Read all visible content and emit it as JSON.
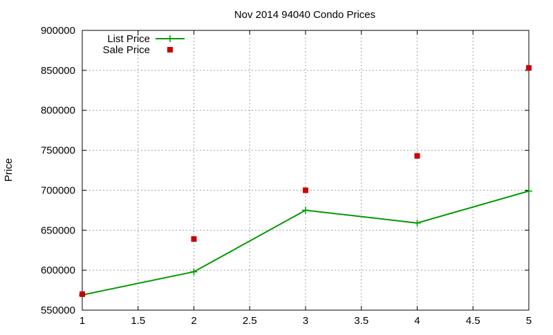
{
  "chart_data": {
    "type": "line",
    "title": "Nov 2014 94040 Condo Prices",
    "xlabel": "",
    "ylabel": "Price",
    "xlim": [
      1,
      5
    ],
    "ylim": [
      550000,
      900000
    ],
    "x_ticks": [
      "1",
      "1.5",
      "2",
      "2.5",
      "3",
      "3.5",
      "4",
      "4.5",
      "5"
    ],
    "y_ticks": [
      "550000",
      "600000",
      "650000",
      "700000",
      "750000",
      "800000",
      "850000",
      "900000"
    ],
    "grid": true,
    "legend_position": "top-left",
    "series": [
      {
        "name": "List Price",
        "style": "line+points",
        "color": "#009900",
        "x": [
          1,
          2,
          3,
          4,
          5
        ],
        "y": [
          569000,
          598000,
          675000,
          659000,
          699000
        ]
      },
      {
        "name": "Sale Price",
        "style": "points",
        "color": "#cc0000",
        "x": [
          1,
          2,
          3,
          4,
          5
        ],
        "y": [
          570000,
          639000,
          700000,
          743000,
          853000
        ]
      }
    ]
  }
}
